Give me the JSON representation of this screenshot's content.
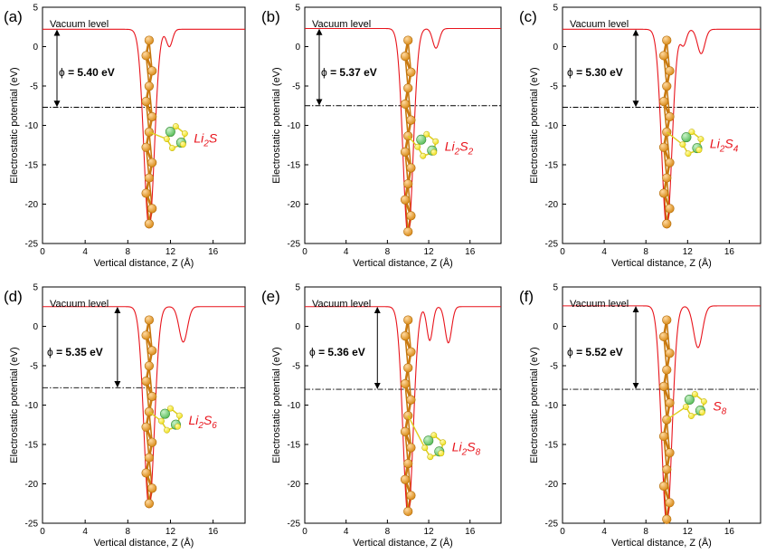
{
  "figure": {
    "colors": {
      "curve": "#e8141c",
      "axis": "#000000",
      "vacuum_line": "#000000",
      "li_atom": "#d98c1a",
      "li_bond": "#c97a10",
      "s_atom": "#f0e020",
      "s_bond": "#e0d020",
      "n_atom": "#5cbf5c",
      "molecule_label": "#e8141c"
    },
    "atom_icon": "sphere-atom-icon"
  },
  "chart_data": [
    {
      "type": "line",
      "panel": "(a)",
      "molecule": {
        "base": "Li",
        "sub1": "2",
        "mid": "S",
        "sub2": ""
      },
      "vacuum_label": "Vacuum level",
      "phi_symbol": "ϕ",
      "phi_text": " = 5.40 eV",
      "work_function_eV": 5.4,
      "vacuum_level_eV": 2.2,
      "fermi_level_eV": -7.7,
      "xlabel": "Vertical distance, Z (Å)",
      "ylabel": "Electrostatic potential (eV)",
      "xlim": [
        0,
        19
      ],
      "ylim": [
        -25,
        5
      ],
      "xticks": [
        0,
        4,
        8,
        12,
        16
      ],
      "yticks": [
        5,
        0,
        -5,
        -10,
        -15,
        -20,
        -25
      ],
      "well": {
        "z_center": 10.0,
        "width": 0.7,
        "min_eV": -23.0
      },
      "bumps": [
        {
          "z": 11.9,
          "depth_eV": 2.2,
          "width": 0.4
        }
      ],
      "adsorbate": {
        "center_z": 12.5,
        "center_eV": -11.5
      }
    },
    {
      "type": "line",
      "panel": "(b)",
      "molecule": {
        "base": "Li",
        "sub1": "2",
        "mid": "S",
        "sub2": "2"
      },
      "vacuum_label": "Vacuum level",
      "phi_symbol": "ϕ",
      "phi_text": " = 5.37 eV",
      "work_function_eV": 5.37,
      "vacuum_level_eV": 2.3,
      "fermi_level_eV": -7.5,
      "xlabel": "Vertical distance, Z (Å)",
      "ylabel": "Electrostatic potential (eV)",
      "xlim": [
        0,
        19
      ],
      "ylim": [
        -25,
        5
      ],
      "xticks": [
        0,
        4,
        8,
        12,
        16
      ],
      "yticks": [
        5,
        0,
        -5,
        -10,
        -15,
        -20,
        -25
      ],
      "well": {
        "z_center": 10.0,
        "width": 0.7,
        "min_eV": -24.0
      },
      "bumps": [
        {
          "z": 12.7,
          "depth_eV": 2.5,
          "width": 0.45
        }
      ],
      "adsorbate": {
        "center_z": 11.8,
        "center_eV": -12.5
      }
    },
    {
      "type": "line",
      "panel": "(c)",
      "molecule": {
        "base": "Li",
        "sub1": "2",
        "mid": "S",
        "sub2": "4"
      },
      "vacuum_label": "Vacuum level",
      "phi_symbol": "ϕ",
      "phi_text": " = 5.30 eV",
      "work_function_eV": 5.3,
      "vacuum_level_eV": 2.2,
      "fermi_level_eV": -7.7,
      "xlabel": "Vertical distance, Z (Å)",
      "ylabel": "Electrostatic potential (eV)",
      "xlim": [
        0,
        19
      ],
      "ylim": [
        -25,
        5
      ],
      "xticks": [
        0,
        4,
        8,
        12,
        16
      ],
      "yticks": [
        5,
        0,
        -5,
        -10,
        -15,
        -20,
        -25
      ],
      "well": {
        "z_center": 10.0,
        "width": 0.7,
        "min_eV": -23.0
      },
      "bumps": [
        {
          "z": 11.6,
          "depth_eV": 2.0,
          "width": 0.4
        },
        {
          "z": 13.3,
          "depth_eV": 3.1,
          "width": 0.5
        }
      ],
      "adsorbate": {
        "center_z": 12.4,
        "center_eV": -12.2
      }
    },
    {
      "type": "line",
      "panel": "(d)",
      "molecule": {
        "base": "Li",
        "sub1": "2",
        "mid": "S",
        "sub2": "6"
      },
      "vacuum_label": "Vacuum level",
      "phi_symbol": "ϕ",
      "phi_text": " = 5.35 eV",
      "work_function_eV": 5.35,
      "vacuum_level_eV": 2.5,
      "fermi_level_eV": -7.8,
      "xlabel": "Vertical distance, Z (Å)",
      "ylabel": "Electrostatic potential (eV)",
      "xlim": [
        0,
        19
      ],
      "ylim": [
        -25,
        5
      ],
      "xticks": [
        0,
        4,
        8,
        12,
        16
      ],
      "yticks": [
        5,
        0,
        -5,
        -10,
        -15,
        -20,
        -25
      ],
      "well": {
        "z_center": 10.0,
        "width": 0.7,
        "min_eV": -23.0
      },
      "bumps": [
        {
          "z": 13.2,
          "depth_eV": 4.5,
          "width": 0.55
        }
      ],
      "adsorbate": {
        "center_z": 12.0,
        "center_eV": -11.8
      }
    },
    {
      "type": "line",
      "panel": "(e)",
      "molecule": {
        "base": "Li",
        "sub1": "2",
        "mid": "S",
        "sub2": "8"
      },
      "vacuum_label": "Vacuum level",
      "phi_symbol": "ϕ",
      "phi_text": " = 5.36 eV",
      "work_function_eV": 5.36,
      "vacuum_level_eV": 2.5,
      "fermi_level_eV": -8.0,
      "xlabel": "Vertical distance, Z (Å)",
      "ylabel": "Electrostatic potential (eV)",
      "xlim": [
        0,
        19
      ],
      "ylim": [
        -25,
        5
      ],
      "xticks": [
        0,
        4,
        8,
        12,
        16
      ],
      "yticks": [
        5,
        0,
        -5,
        -10,
        -15,
        -20,
        -25
      ],
      "well": {
        "z_center": 10.0,
        "width": 0.7,
        "min_eV": -24.0
      },
      "bumps": [
        {
          "z": 12.1,
          "depth_eV": 4.3,
          "width": 0.4
        },
        {
          "z": 13.9,
          "depth_eV": 4.6,
          "width": 0.45
        }
      ],
      "adsorbate": {
        "center_z": 12.5,
        "center_eV": -15.2
      }
    },
    {
      "type": "line",
      "panel": "(f)",
      "molecule": {
        "base": "S",
        "sub1": "8",
        "mid": "",
        "sub2": ""
      },
      "vacuum_label": "Vacuum level",
      "phi_symbol": "ϕ",
      "phi_text": " = 5.52 eV",
      "work_function_eV": 5.52,
      "vacuum_level_eV": 2.6,
      "fermi_level_eV": -8.0,
      "xlabel": "Vertical distance, Z (Å)",
      "ylabel": "Electrostatic potential (eV)",
      "xlim": [
        0,
        19
      ],
      "ylim": [
        -25,
        5
      ],
      "xticks": [
        0,
        4,
        8,
        12,
        16
      ],
      "yticks": [
        5,
        0,
        -5,
        -10,
        -15,
        -20,
        -25
      ],
      "well": {
        "z_center": 10.0,
        "width": 0.7,
        "min_eV": -25.0
      },
      "bumps": [
        {
          "z": 13.0,
          "depth_eV": 5.3,
          "width": 0.6
        }
      ],
      "adsorbate": {
        "center_z": 12.7,
        "center_eV": -10.0
      }
    }
  ]
}
